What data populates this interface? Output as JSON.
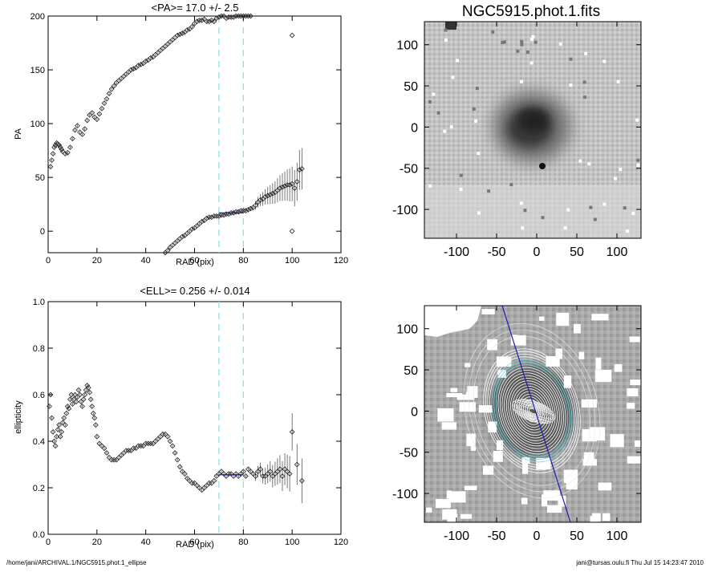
{
  "footer": {
    "path": "/home/jani/ARCHIVAL.1/NGC5915.phot.1_ellipse",
    "stamp": "jani@tursas.oulu.fi  Thu Jul 15 14:23:47 2010"
  },
  "chart_data": [
    {
      "type": "scatter",
      "title": "<PA>=  17.0 +/-   2.5",
      "xlabel": "RAD (pix)",
      "ylabel": "PA",
      "xlim": [
        0,
        120
      ],
      "ylim": [
        -20,
        200
      ],
      "xticks": [
        0,
        20,
        40,
        60,
        80,
        100,
        120
      ],
      "yticks": [
        0,
        50,
        100,
        150,
        200
      ],
      "vlines": [
        70,
        80
      ],
      "fit_range": [
        70,
        80
      ],
      "fit_value": 17.0,
      "series": [
        {
          "x": [
            1,
            1.5,
            2,
            2.5,
            3,
            3.5,
            4,
            4.5,
            5,
            5.5,
            6,
            7,
            8,
            9,
            10,
            11,
            12,
            13,
            14,
            15,
            16,
            17,
            18,
            19,
            20,
            21,
            22,
            23,
            24,
            25,
            26,
            27,
            28,
            29,
            30,
            31,
            32,
            33,
            34,
            35,
            36,
            37,
            38,
            39,
            40,
            41,
            42,
            43,
            44,
            45,
            46,
            47,
            48,
            49,
            50,
            51,
            52,
            53,
            54,
            55,
            56,
            57,
            58,
            59,
            60,
            61,
            62,
            63,
            64,
            65,
            66,
            67,
            68,
            69,
            70,
            71,
            72,
            73,
            74,
            75,
            76,
            77,
            78,
            79,
            80,
            81,
            82,
            83
          ],
          "y": [
            60,
            66,
            72,
            78,
            80,
            82,
            81,
            80,
            78,
            76,
            74,
            72,
            73,
            78,
            86,
            94,
            98,
            92,
            90,
            95,
            103,
            108,
            110,
            106,
            104,
            109,
            114,
            119,
            123,
            128,
            132,
            135,
            138,
            140,
            142,
            144,
            146,
            148,
            150,
            151,
            152,
            154,
            155,
            156,
            158,
            159,
            161,
            162,
            164,
            166,
            168,
            170,
            172,
            174,
            176,
            178,
            180,
            182,
            183,
            184,
            185,
            187,
            188,
            190,
            193,
            195,
            196,
            196,
            197,
            195,
            195,
            196,
            195,
            198,
            199,
            200,
            200,
            198,
            199,
            199,
            199,
            200,
            200,
            200,
            200,
            200,
            200,
            200
          ]
        },
        {
          "x": [
            48,
            49,
            50,
            51,
            52,
            53,
            54,
            55,
            56,
            57,
            58,
            59,
            60,
            61,
            62,
            63,
            64,
            65,
            66,
            67,
            68,
            69,
            70,
            71,
            72,
            73,
            74,
            75,
            76,
            77,
            78,
            79,
            80,
            81,
            82,
            83,
            84,
            85,
            86,
            87,
            88,
            89,
            90,
            91,
            92,
            93,
            94,
            95,
            96,
            97,
            98,
            99,
            100,
            101,
            102,
            103,
            104
          ],
          "y": [
            -20,
            -18,
            -15,
            -13,
            -11,
            -9,
            -7,
            -5,
            -4,
            -2,
            0,
            2,
            3,
            5,
            7,
            9,
            10,
            12,
            13,
            13,
            14,
            14,
            14,
            15,
            15,
            16,
            16,
            17,
            17,
            18,
            18,
            19,
            19,
            19,
            20,
            21,
            22,
            24,
            27,
            29,
            30,
            32,
            33,
            34,
            35,
            36,
            38,
            40,
            41,
            42,
            43,
            43,
            44,
            40,
            46,
            57,
            58
          ]
        }
      ],
      "isolated_points": [
        {
          "x": 100,
          "y": 182
        },
        {
          "x": 100,
          "y": 0
        }
      ]
    },
    {
      "type": "scatter",
      "title": "<ELL>= 0.256 +/-  0.014",
      "xlabel": "RAD (pix)",
      "ylabel": "ellipticity",
      "xlim": [
        0,
        120
      ],
      "ylim": [
        0.0,
        1.0
      ],
      "xticks": [
        0,
        20,
        40,
        60,
        80,
        100,
        120
      ],
      "yticks": [
        0.0,
        0.2,
        0.4,
        0.6,
        0.8,
        1.0
      ],
      "vlines": [
        70,
        80
      ],
      "fit_range": [
        70,
        80
      ],
      "fit_value": 0.256,
      "series": [
        {
          "x": [
            0.5,
            1,
            1.5,
            2,
            2.5,
            3,
            3.5,
            4,
            4.5,
            5,
            5.5,
            6,
            6.5,
            7,
            7.5,
            8,
            8.5,
            9,
            9.5,
            10,
            10.5,
            11,
            11.5,
            12,
            12.5,
            13,
            13.5,
            14,
            14.5,
            15,
            15.5,
            16,
            16.5,
            17,
            17.5,
            18,
            18.5,
            19,
            19.5,
            20,
            21,
            22,
            23,
            24,
            25,
            26,
            27,
            28,
            29,
            30,
            31,
            32,
            33,
            34,
            35,
            36,
            37,
            38,
            39,
            40,
            41,
            42,
            43,
            44,
            45,
            46,
            47,
            48,
            49,
            50,
            51,
            52,
            53,
            54,
            55,
            56,
            57,
            58,
            59,
            60,
            61,
            62,
            63,
            64,
            65,
            66,
            67,
            68,
            69,
            70,
            71,
            72,
            73,
            74,
            75,
            76,
            77,
            78,
            79,
            80,
            81,
            82,
            83,
            84,
            85,
            86,
            87,
            88,
            89,
            90,
            91,
            92,
            93,
            94,
            95,
            96,
            97,
            98,
            99,
            100,
            102,
            104
          ],
          "y": [
            0.55,
            0.6,
            0.5,
            0.44,
            0.4,
            0.38,
            0.42,
            0.45,
            0.47,
            0.42,
            0.44,
            0.48,
            0.5,
            0.47,
            0.52,
            0.55,
            0.54,
            0.58,
            0.6,
            0.56,
            0.58,
            0.6,
            0.57,
            0.59,
            0.62,
            0.6,
            0.57,
            0.55,
            0.58,
            0.6,
            0.62,
            0.64,
            0.63,
            0.61,
            0.58,
            0.55,
            0.52,
            0.5,
            0.47,
            0.42,
            0.39,
            0.38,
            0.37,
            0.35,
            0.33,
            0.32,
            0.32,
            0.32,
            0.33,
            0.34,
            0.35,
            0.36,
            0.36,
            0.36,
            0.37,
            0.37,
            0.38,
            0.38,
            0.38,
            0.39,
            0.39,
            0.39,
            0.39,
            0.4,
            0.41,
            0.42,
            0.43,
            0.43,
            0.42,
            0.4,
            0.38,
            0.35,
            0.32,
            0.29,
            0.27,
            0.26,
            0.24,
            0.23,
            0.22,
            0.22,
            0.21,
            0.2,
            0.19,
            0.2,
            0.21,
            0.22,
            0.22,
            0.23,
            0.25,
            0.26,
            0.27,
            0.26,
            0.25,
            0.26,
            0.26,
            0.25,
            0.26,
            0.25,
            0.26,
            0.27,
            0.25,
            0.28,
            0.27,
            0.26,
            0.25,
            0.27,
            0.28,
            0.25,
            0.25,
            0.26,
            0.27,
            0.25,
            0.26,
            0.27,
            0.28,
            0.25,
            0.28,
            0.27,
            0.26,
            0.44,
            0.3,
            0.23
          ]
        }
      ]
    },
    {
      "type": "heatmap",
      "title": "NGC5915.phot.1.fits",
      "xlim": [
        -140,
        130
      ],
      "ylim": [
        -135,
        128
      ],
      "xticks": [
        -100,
        -50,
        0,
        50,
        100
      ],
      "yticks": [
        -100,
        -50,
        0,
        50,
        100
      ]
    },
    {
      "type": "heatmap",
      "title": "",
      "xlim": [
        -140,
        130
      ],
      "ylim": [
        -135,
        128
      ],
      "xticks": [
        -100,
        -50,
        0,
        50,
        100
      ],
      "yticks": [
        -100,
        -50,
        0,
        50,
        100
      ],
      "overlay": "ellipse isophotes with major-axis line, PA 17.0"
    }
  ]
}
